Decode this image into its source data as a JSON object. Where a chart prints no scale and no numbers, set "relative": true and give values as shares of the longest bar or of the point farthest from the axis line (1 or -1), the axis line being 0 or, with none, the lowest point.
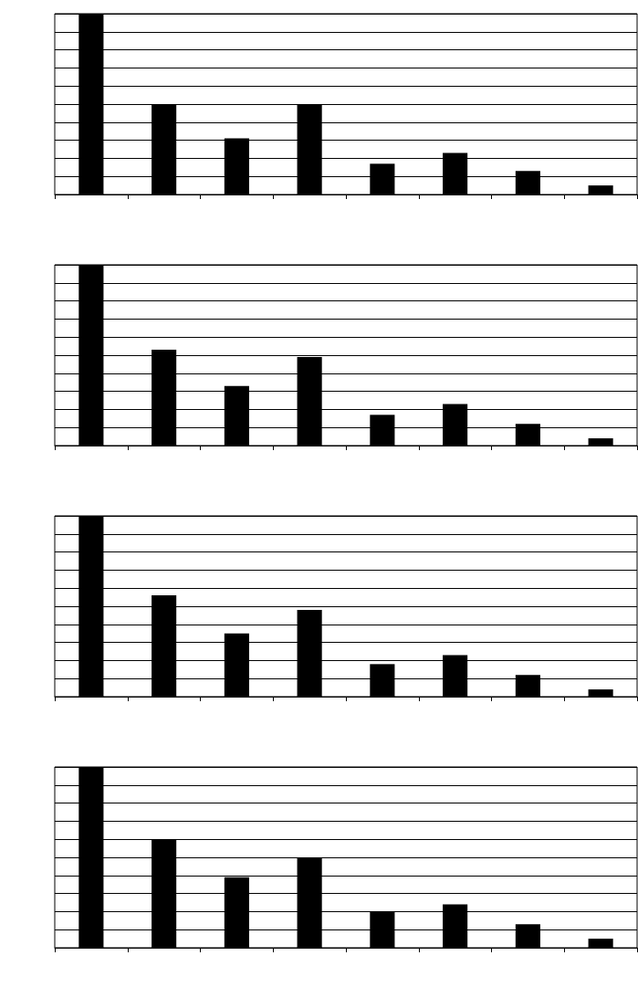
{
  "chart_data": [
    {
      "type": "bar",
      "relative": true,
      "grid": true,
      "categories": [
        null,
        null,
        null,
        null,
        null,
        null,
        null,
        null
      ],
      "color": "#000000",
      "values": [
        1,
        0.5,
        0.31,
        0.5,
        0.17,
        0.23,
        0.13,
        0.05
      ]
    },
    {
      "type": "bar",
      "relative": true,
      "grid": true,
      "categories": [
        null,
        null,
        null,
        null,
        null,
        null,
        null,
        null
      ],
      "color": "#000000",
      "values": [
        1,
        0.53,
        0.33,
        0.49,
        0.17,
        0.23,
        0.12,
        0.04
      ]
    },
    {
      "type": "bar",
      "relative": true,
      "grid": true,
      "categories": [
        null,
        null,
        null,
        null,
        null,
        null,
        null,
        null
      ],
      "color": "#000000",
      "values": [
        1,
        0.56,
        0.35,
        0.48,
        0.18,
        0.23,
        0.12,
        0.04
      ]
    },
    {
      "type": "bar",
      "relative": true,
      "grid": true,
      "categories": [
        null,
        null,
        null,
        null,
        null,
        null,
        null,
        null
      ],
      "color": "#000000",
      "values": [
        1,
        0.6,
        0.39,
        0.5,
        0.2,
        0.24,
        0.13,
        0.05
      ]
    }
  ]
}
